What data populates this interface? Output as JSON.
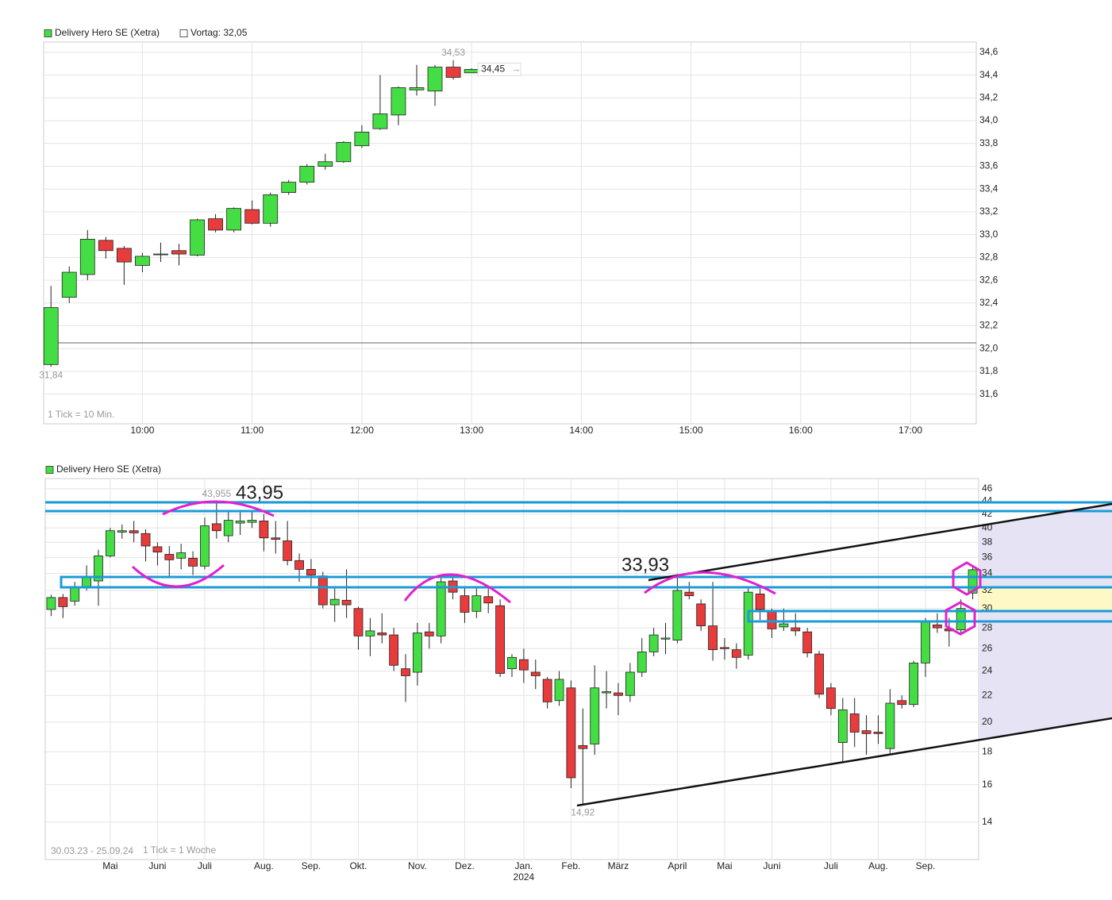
{
  "chart_data": [
    {
      "type": "candlestick",
      "series": [
        {
          "name": "Delivery Hero SE (Xetra)",
          "color": "#44dd44",
          "up_color": "#44dd44",
          "down_color": "#e83b3b",
          "open": [
            31.86,
            32.45,
            32.65,
            32.95,
            32.88,
            32.73,
            32.83,
            32.86,
            32.82,
            33.14,
            33.04,
            33.22,
            33.1,
            33.37,
            33.46,
            33.6,
            33.64,
            33.78,
            33.93,
            34.05,
            34.27,
            34.26,
            34.47,
            34.42
          ],
          "high": [
            32.55,
            32.72,
            33.04,
            32.98,
            32.9,
            32.84,
            32.93,
            32.92,
            33.14,
            33.18,
            33.24,
            33.3,
            33.37,
            33.48,
            33.62,
            33.71,
            33.82,
            33.96,
            34.4,
            34.3,
            34.49,
            34.49,
            34.53,
            34.46
          ],
          "low": [
            31.84,
            32.4,
            32.6,
            32.79,
            32.56,
            32.67,
            32.76,
            32.73,
            32.81,
            33.02,
            33.02,
            33.09,
            33.07,
            33.35,
            33.44,
            33.57,
            33.63,
            33.76,
            33.92,
            33.96,
            34.22,
            34.13,
            34.36,
            34.42
          ],
          "close": [
            32.36,
            32.67,
            32.96,
            32.86,
            32.76,
            32.81,
            32.83,
            32.83,
            33.13,
            33.04,
            33.23,
            33.1,
            33.35,
            33.46,
            33.6,
            33.64,
            33.81,
            33.9,
            34.06,
            34.29,
            34.29,
            34.47,
            34.38,
            34.45
          ]
        }
      ],
      "x": [
        550,
        560,
        570,
        580,
        590,
        600,
        610,
        620,
        630,
        640,
        650,
        660,
        670,
        680,
        690,
        700,
        710,
        720,
        730,
        740,
        750,
        760,
        770,
        780
      ],
      "xlim": [
        546,
        1056
      ],
      "xticks": [
        {
          "value": 600,
          "label": "10:00"
        },
        {
          "value": 660,
          "label": "11:00"
        },
        {
          "value": 720,
          "label": "12:00"
        },
        {
          "value": 780,
          "label": "13:00"
        },
        {
          "value": 840,
          "label": "14:00"
        },
        {
          "value": 900,
          "label": "15:00"
        },
        {
          "value": 960,
          "label": "16:00"
        },
        {
          "value": 1020,
          "label": "17:00"
        }
      ],
      "ylim": [
        31.34,
        34.69
      ],
      "yticks": [
        {
          "value": 31.6,
          "label": "31,6"
        },
        {
          "value": 31.8,
          "label": "31,8"
        },
        {
          "value": 32,
          "label": "32,0"
        },
        {
          "value": 32.2,
          "label": "32,2"
        },
        {
          "value": 32.4,
          "label": "32,4"
        },
        {
          "value": 32.6,
          "label": "32,6"
        },
        {
          "value": 32.8,
          "label": "32,8"
        },
        {
          "value": 33,
          "label": "33,0"
        },
        {
          "value": 33.2,
          "label": "33,2"
        },
        {
          "value": 33.4,
          "label": "33,4"
        },
        {
          "value": 33.6,
          "label": "33,6"
        },
        {
          "value": 33.8,
          "label": "33,8"
        },
        {
          "value": 34,
          "label": "34,0"
        },
        {
          "value": 34.2,
          "label": "34,2"
        },
        {
          "value": 34.4,
          "label": "34,4"
        },
        {
          "value": 34.6,
          "label": "34,6"
        }
      ],
      "grid": true,
      "log_scale": false,
      "reference": {
        "value": 32.05,
        "label": "Vortag: 32,05",
        "color": "#666666"
      },
      "high_label": {
        "value": 34.53,
        "label": "34,53"
      },
      "low_label": {
        "value": 31.84,
        "label": "31,84"
      },
      "last_label": {
        "value": 34.45,
        "label": "34,45"
      },
      "note": "1 Tick = 10 Min."
    },
    {
      "type": "candlestick",
      "series": [
        {
          "name": "Delivery Hero SE (Xetra)",
          "color": "#44dd44",
          "up_color": "#44dd44",
          "down_color": "#e83b3b",
          "open": [
            29.9,
            31.2,
            30.8,
            32.4,
            33.1,
            36.2,
            39.4,
            39.6,
            39.2,
            37.4,
            36.4,
            35.9,
            35.9,
            34.9,
            40.6,
            38.9,
            40.7,
            40.8,
            41.0,
            38.6,
            38.2,
            35.6,
            34.5,
            33.7,
            30.4,
            30.9,
            30.0,
            27.2,
            27.5,
            27.3,
            24.2,
            23.9,
            27.6,
            27.2,
            33.1,
            31.4,
            29.7,
            31.3,
            30.3,
            24.2,
            25.0,
            23.9,
            23.3,
            21.6,
            22.6,
            18.4,
            18.5,
            22.2,
            22.2,
            22.0,
            23.9,
            25.7,
            26.9,
            26.8,
            31.8,
            30.5,
            28.2,
            26.1,
            25.9,
            25.4,
            31.6,
            29.7,
            28.1,
            28.0,
            27.6,
            25.5,
            22.6,
            18.6,
            20.6,
            19.4,
            19.3,
            18.2,
            21.6,
            21.3,
            24.7,
            28.3,
            27.9,
            27.8,
            31.7
          ],
          "high": [
            31.5,
            31.6,
            33.0,
            35.0,
            37.0,
            40.0,
            40.5,
            41.0,
            39.8,
            38.0,
            37.5,
            37.8,
            36.8,
            41.5,
            43.955,
            42.5,
            42.5,
            42.5,
            42.0,
            41.0,
            41.0,
            36.5,
            35.8,
            34.2,
            32.5,
            34.5,
            30.2,
            29.0,
            29.5,
            28.0,
            25.5,
            28.5,
            28.5,
            33.5,
            34.0,
            32.5,
            32.5,
            32.5,
            31.0,
            25.5,
            26.0,
            25.0,
            23.5,
            24.0,
            23.2,
            21.0,
            24.5,
            24.0,
            23.0,
            24.7,
            27.0,
            28.0,
            28.5,
            33.93,
            33.0,
            31.0,
            33.0,
            27.0,
            26.5,
            32.5,
            32.2,
            30.0,
            30.0,
            29.5,
            28.0,
            25.8,
            23.0,
            21.8,
            21.8,
            20.5,
            20.5,
            22.5,
            22.0,
            24.9,
            29.0,
            29.5,
            29.0,
            31.0,
            35.0
          ],
          "low": [
            29.2,
            29.0,
            30.3,
            32.0,
            30.3,
            36.0,
            38.5,
            38.0,
            35.5,
            35.0,
            33.5,
            34.5,
            33.8,
            34.5,
            38.5,
            38.0,
            39.0,
            40.0,
            36.8,
            36.5,
            35.0,
            33.0,
            32.5,
            30.0,
            28.6,
            29.0,
            25.9,
            25.3,
            26.5,
            24.0,
            21.5,
            22.8,
            26.0,
            26.5,
            31.0,
            28.5,
            29.0,
            29.5,
            23.5,
            23.5,
            23.0,
            22.5,
            21.0,
            21.2,
            15.8,
            14.92,
            17.8,
            21.0,
            20.5,
            21.5,
            23.5,
            25.3,
            25.5,
            26.5,
            31.0,
            27.7,
            24.9,
            25.0,
            24.2,
            25.0,
            28.8,
            27.0,
            27.7,
            27.2,
            25.2,
            21.8,
            20.5,
            17.4,
            18.3,
            17.8,
            18.5,
            17.9,
            21.0,
            21.1,
            23.5,
            27.5,
            26.2,
            27.5,
            31.0
          ],
          "close": [
            31.2,
            30.2,
            32.4,
            33.6,
            36.2,
            39.6,
            39.6,
            39.3,
            37.5,
            36.7,
            35.7,
            36.6,
            34.9,
            40.3,
            39.6,
            41.1,
            41.0,
            41.1,
            38.6,
            38.4,
            35.6,
            34.5,
            33.8,
            30.4,
            31.0,
            30.4,
            27.2,
            27.7,
            27.3,
            24.5,
            23.6,
            27.5,
            27.2,
            33.0,
            31.8,
            29.6,
            31.4,
            30.6,
            23.8,
            25.2,
            24.1,
            23.6,
            21.5,
            23.3,
            16.4,
            18.2,
            22.6,
            22.3,
            22.0,
            23.9,
            25.7,
            27.3,
            27.0,
            32.0,
            31.4,
            28.2,
            25.9,
            26.0,
            25.2,
            31.8,
            29.9,
            27.9,
            28.4,
            27.7,
            25.6,
            22.1,
            21.0,
            20.9,
            19.3,
            19.2,
            19.2,
            21.4,
            21.3,
            24.7,
            28.6,
            28.0,
            27.7,
            30.0,
            34.45
          ]
        }
      ],
      "categories": [
        null,
        null,
        null,
        null,
        null,
        "Mai",
        null,
        null,
        null,
        "Juni",
        null,
        null,
        null,
        "Juli",
        null,
        null,
        null,
        null,
        "Aug.",
        null,
        null,
        null,
        "Sep.",
        null,
        null,
        null,
        "Okt.",
        null,
        null,
        null,
        null,
        "Nov.",
        null,
        null,
        null,
        "Dez.",
        null,
        null,
        null,
        null,
        "Jan.",
        null,
        null,
        null,
        "Feb.",
        null,
        null,
        null,
        "März",
        null,
        null,
        null,
        null,
        "April",
        null,
        null,
        null,
        "Mai",
        null,
        null,
        null,
        "Juni",
        null,
        null,
        null,
        null,
        "Juli",
        null,
        null,
        null,
        "Aug.",
        null,
        null,
        null,
        "Sep.",
        null,
        null,
        null,
        null
      ],
      "year_label": "2024",
      "ylim": [
        12.25,
        47.7
      ],
      "yticks": [
        14,
        16,
        18,
        20,
        22,
        24,
        26,
        28,
        30,
        32,
        34,
        36,
        38,
        40,
        42,
        44,
        46
      ],
      "grid": true,
      "log_scale": true,
      "high_label": {
        "value": 43.955,
        "label": "43,955"
      },
      "low_label": {
        "value": 14.92,
        "label": "14,92"
      },
      "annotations": [
        {
          "value": 43.95,
          "label": "43,95"
        },
        {
          "value": 33.93,
          "label": "33,93"
        }
      ],
      "range": "30.03.23 - 25.09.24",
      "note": "1 Tick = 1 Woche"
    }
  ]
}
